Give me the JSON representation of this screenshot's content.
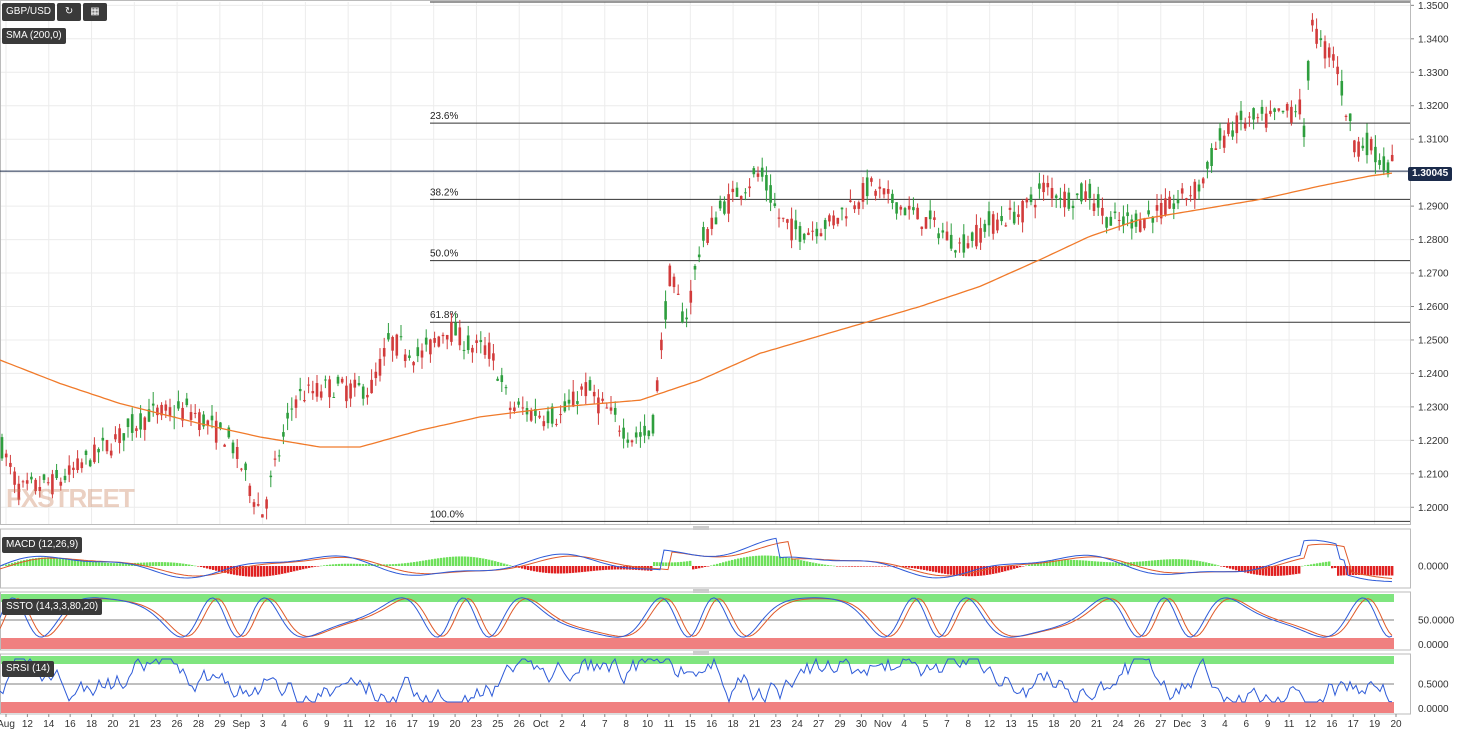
{
  "toolbar": {
    "symbol": "GBP/USD",
    "refresh_icon": "refresh-icon",
    "calendar_icon": "calendar-icon"
  },
  "indicators": {
    "sma": "SMA (200,0)",
    "macd": "MACD (12,26,9)",
    "ssto": "SSTO (14,3,3,80,20)",
    "srsi": "SRSI (14)"
  },
  "logo": "FXSTREET",
  "last_price": "1.30045",
  "colors": {
    "up": "#2e9e3e",
    "down": "#d23b3b",
    "sma": "#f07a2a",
    "fib": "#333333",
    "macd_line": "#2e5bd8",
    "signal_line": "#e05a2a",
    "hist_up": "#6ee05a",
    "hist_down": "#e02020",
    "zone_green": "#7fe57f",
    "zone_red": "#f08080"
  },
  "chart_data": [
    {
      "type": "candlestick",
      "series": [
        {
          "name": "GBP/USD"
        },
        {
          "name": "SMA (200,0)"
        }
      ],
      "yticks": [
        "1.2000",
        "1.2100",
        "1.2200",
        "1.2300",
        "1.2400",
        "1.2500",
        "1.2600",
        "1.2700",
        "1.2800",
        "1.2900",
        "1.3000",
        "1.3100",
        "1.3200",
        "1.3300",
        "1.3400",
        "1.3500"
      ],
      "ylim": [
        1.195,
        1.351
      ],
      "fib_levels": [
        {
          "label": "23.6%",
          "value": 1.3148
        },
        {
          "label": "38.2%",
          "value": 1.292
        },
        {
          "label": "50.0%",
          "value": 1.2737
        },
        {
          "label": "61.8%",
          "value": 1.2553
        },
        {
          "label": "100.0%",
          "value": 1.1958
        }
      ],
      "fib_top": 1.351,
      "last_price": 1.30045,
      "xticks": [
        "Aug",
        "12",
        "14",
        "16",
        "18",
        "20",
        "21",
        "23",
        "26",
        "28",
        "29",
        "Sep",
        "3",
        "4",
        "6",
        "9",
        "11",
        "12",
        "16",
        "17",
        "19",
        "20",
        "23",
        "25",
        "26",
        "Oct",
        "2",
        "4",
        "7",
        "8",
        "10",
        "11",
        "15",
        "16",
        "18",
        "21",
        "23",
        "24",
        "27",
        "29",
        "30",
        "Nov",
        "4",
        "5",
        "7",
        "8",
        "12",
        "13",
        "15",
        "18",
        "20",
        "21",
        "24",
        "26",
        "27",
        "Dec",
        "3",
        "4",
        "6",
        "9",
        "11",
        "12",
        "16",
        "17",
        "19",
        "20"
      ],
      "anchors": [
        [
          0,
          1.219
        ],
        [
          20,
          1.205
        ],
        [
          60,
          1.208
        ],
        [
          100,
          1.217
        ],
        [
          150,
          1.228
        ],
        [
          190,
          1.229
        ],
        [
          230,
          1.22
        ],
        [
          262,
          1.198
        ],
        [
          295,
          1.233
        ],
        [
          330,
          1.236
        ],
        [
          370,
          1.235
        ],
        [
          390,
          1.25
        ],
        [
          420,
          1.245
        ],
        [
          448,
          1.254
        ],
        [
          470,
          1.248
        ],
        [
          490,
          1.247
        ],
        [
          510,
          1.23
        ],
        [
          540,
          1.228
        ],
        [
          560,
          1.227
        ],
        [
          585,
          1.236
        ],
        [
          610,
          1.228
        ],
        [
          630,
          1.221
        ],
        [
          652,
          1.222
        ],
        [
          660,
          1.245
        ],
        [
          670,
          1.27
        ],
        [
          685,
          1.255
        ],
        [
          700,
          1.278
        ],
        [
          720,
          1.289
        ],
        [
          740,
          1.295
        ],
        [
          760,
          1.3
        ],
        [
          780,
          1.286
        ],
        [
          800,
          1.282
        ],
        [
          830,
          1.285
        ],
        [
          870,
          1.296
        ],
        [
          900,
          1.29
        ],
        [
          930,
          1.285
        ],
        [
          960,
          1.278
        ],
        [
          990,
          1.285
        ],
        [
          1020,
          1.288
        ],
        [
          1045,
          1.296
        ],
        [
          1070,
          1.292
        ],
        [
          1090,
          1.294
        ],
        [
          1110,
          1.285
        ],
        [
          1140,
          1.286
        ],
        [
          1170,
          1.29
        ],
        [
          1200,
          1.296
        ],
        [
          1220,
          1.31
        ],
        [
          1240,
          1.315
        ],
        [
          1270,
          1.316
        ],
        [
          1300,
          1.32
        ],
        [
          1306,
          1.306
        ],
        [
          1310,
          1.349
        ],
        [
          1320,
          1.338
        ],
        [
          1335,
          1.335
        ],
        [
          1345,
          1.32
        ],
        [
          1355,
          1.309
        ],
        [
          1370,
          1.308
        ],
        [
          1385,
          1.302
        ],
        [
          1395,
          1.303
        ]
      ],
      "sma_points": [
        [
          0,
          1.244
        ],
        [
          60,
          1.237
        ],
        [
          120,
          1.231
        ],
        [
          200,
          1.225
        ],
        [
          260,
          1.221
        ],
        [
          320,
          1.218
        ],
        [
          360,
          1.218
        ],
        [
          420,
          1.223
        ],
        [
          480,
          1.227
        ],
        [
          560,
          1.23
        ],
        [
          640,
          1.232
        ],
        [
          700,
          1.238
        ],
        [
          760,
          1.246
        ],
        [
          840,
          1.253
        ],
        [
          920,
          1.26
        ],
        [
          980,
          1.266
        ],
        [
          1040,
          1.274
        ],
        [
          1090,
          1.281
        ],
        [
          1140,
          1.286
        ],
        [
          1200,
          1.289
        ],
        [
          1260,
          1.292
        ],
        [
          1320,
          1.296
        ],
        [
          1370,
          1.299
        ],
        [
          1395,
          1.3
        ]
      ]
    },
    {
      "type": "line",
      "name": "MACD (12,26,9)",
      "yticks": [
        "0.0000"
      ]
    },
    {
      "type": "line",
      "name": "SSTO (14,3,3,80,20)",
      "yticks": [
        "50.0000",
        "0.0000"
      ]
    },
    {
      "type": "line",
      "name": "SRSI (14)",
      "yticks": [
        "0.5000",
        "0.0000"
      ]
    }
  ]
}
